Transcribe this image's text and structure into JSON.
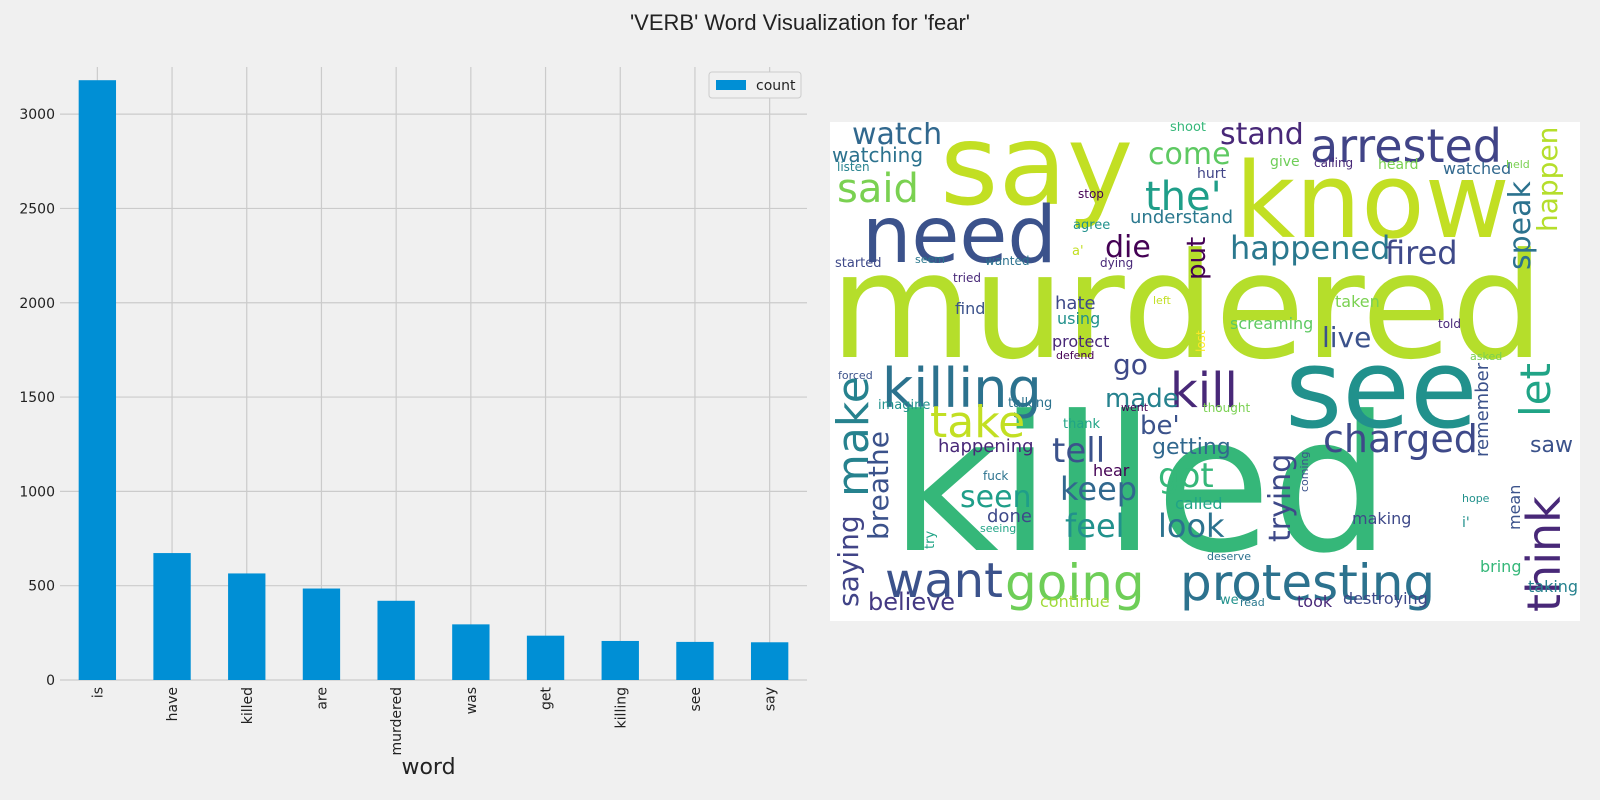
{
  "figure": {
    "title": "'VERB' Word Visualization for 'fear'"
  },
  "chart_data": [
    {
      "type": "bar",
      "xlabel": "word",
      "ylabel": "",
      "categories": [
        "is",
        "have",
        "killed",
        "are",
        "murdered",
        "was",
        "get",
        "killing",
        "see",
        "say"
      ],
      "series": [
        {
          "name": "count",
          "values": [
            3180,
            673,
            565,
            485,
            420,
            295,
            235,
            207,
            202,
            200
          ]
        }
      ],
      "ylim": [
        0,
        3250
      ],
      "yticks": [
        0,
        500,
        1000,
        1500,
        2000,
        2500,
        3000
      ],
      "grid": true,
      "legend_position": "top-right",
      "bar_color": "#008fd5"
    },
    {
      "type": "wordcloud",
      "words": [
        {
          "text": "killed",
          "color": "#35b779"
        },
        {
          "text": "murdered",
          "color": "#b5de2b"
        },
        {
          "text": "say",
          "color": "#c2df23"
        },
        {
          "text": "know",
          "color": "#c2df23"
        },
        {
          "text": "see",
          "color": "#21918c"
        },
        {
          "text": "need",
          "color": "#3b528b"
        },
        {
          "text": "killing",
          "color": "#2c728e"
        },
        {
          "text": "protesting",
          "color": "#2c728e"
        },
        {
          "text": "arrested",
          "color": "#414487"
        },
        {
          "text": "going",
          "color": "#6ece58"
        },
        {
          "text": "want",
          "color": "#3b528b"
        },
        {
          "text": "kill",
          "color": "#482878"
        },
        {
          "text": "think",
          "color": "#482878"
        },
        {
          "text": "make",
          "color": "#26828e"
        },
        {
          "text": "take",
          "color": "#c2df23"
        },
        {
          "text": "charged",
          "color": "#3e4989"
        },
        {
          "text": "the'",
          "color": "#1f9e89"
        },
        {
          "text": "let",
          "color": "#20a486"
        },
        {
          "text": "said",
          "color": "#7ad151"
        },
        {
          "text": "happened",
          "color": "#2a788e"
        },
        {
          "text": "fired",
          "color": "#3e4989"
        },
        {
          "text": "tell",
          "color": "#3b528b"
        },
        {
          "text": "got",
          "color": "#35b779"
        },
        {
          "text": "feel",
          "color": "#21918c"
        },
        {
          "text": "look",
          "color": "#2c728e"
        },
        {
          "text": "keep",
          "color": "#31688e"
        },
        {
          "text": "seen",
          "color": "#1f9e89"
        },
        {
          "text": "watch",
          "color": "#31688e"
        },
        {
          "text": "stand",
          "color": "#482878"
        },
        {
          "text": "come",
          "color": "#5ec962"
        },
        {
          "text": "die",
          "color": "#440154"
        },
        {
          "text": "made",
          "color": "#26828e"
        },
        {
          "text": "go",
          "color": "#3e4989"
        },
        {
          "text": "live",
          "color": "#3b528b"
        },
        {
          "text": "trying",
          "color": "#3e4989"
        },
        {
          "text": "speak",
          "color": "#2c728e"
        },
        {
          "text": "happen",
          "color": "#b5de2b"
        },
        {
          "text": "breathe",
          "color": "#3b528b"
        },
        {
          "text": "saying",
          "color": "#414487"
        },
        {
          "text": "believe",
          "color": "#443983"
        },
        {
          "text": "put",
          "color": "#440154"
        },
        {
          "text": "be'",
          "color": "#3b528b"
        },
        {
          "text": "getting",
          "color": "#31688e"
        },
        {
          "text": "saw",
          "color": "#3b528b"
        },
        {
          "text": "watching",
          "color": "#2c728e"
        },
        {
          "text": "happening",
          "color": "#482878"
        },
        {
          "text": "understand",
          "color": "#2a788e"
        },
        {
          "text": "remember",
          "color": "#3b528b"
        },
        {
          "text": "hate",
          "color": "#3e4989"
        },
        {
          "text": "using",
          "color": "#21918c"
        },
        {
          "text": "protect",
          "color": "#482878"
        },
        {
          "text": "taken",
          "color": "#7ad151"
        },
        {
          "text": "screaming",
          "color": "#5ec962"
        },
        {
          "text": "done",
          "color": "#3e4989"
        },
        {
          "text": "hurt",
          "color": "#414487"
        },
        {
          "text": "find",
          "color": "#3b528b"
        },
        {
          "text": "continue",
          "color": "#a0da39"
        },
        {
          "text": "destroying",
          "color": "#3e4989"
        },
        {
          "text": "took",
          "color": "#482878"
        },
        {
          "text": "taking",
          "color": "#26828e"
        },
        {
          "text": "bring",
          "color": "#35b779"
        },
        {
          "text": "making",
          "color": "#3e4989"
        },
        {
          "text": "called",
          "color": "#20a486"
        },
        {
          "text": "hear",
          "color": "#440154"
        },
        {
          "text": "mean",
          "color": "#3b528b"
        },
        {
          "text": "heard",
          "color": "#7ad151"
        },
        {
          "text": "watched",
          "color": "#31688e"
        },
        {
          "text": "give",
          "color": "#6ece58"
        },
        {
          "text": "calling",
          "color": "#482878"
        },
        {
          "text": "shoot",
          "color": "#35b779"
        },
        {
          "text": "listen",
          "color": "#26828e"
        },
        {
          "text": "stop",
          "color": "#440154"
        },
        {
          "text": "agree",
          "color": "#21918c"
        },
        {
          "text": "started",
          "color": "#3e4989"
        },
        {
          "text": "seem",
          "color": "#2a788e"
        },
        {
          "text": "wanted",
          "color": "#2c728e"
        },
        {
          "text": "dying",
          "color": "#482878"
        },
        {
          "text": "tried",
          "color": "#482878"
        },
        {
          "text": "a'",
          "color": "#c2df23"
        },
        {
          "text": "left",
          "color": "#c2df23"
        },
        {
          "text": "told",
          "color": "#482878"
        },
        {
          "text": "lost",
          "color": "#fde725"
        },
        {
          "text": "defend",
          "color": "#440154"
        },
        {
          "text": "forced",
          "color": "#3b528b"
        },
        {
          "text": "imagine",
          "color": "#21918c"
        },
        {
          "text": "talking",
          "color": "#2c728e"
        },
        {
          "text": "went",
          "color": "#440154"
        },
        {
          "text": "thought",
          "color": "#7ad151"
        },
        {
          "text": "thank",
          "color": "#20a486"
        },
        {
          "text": "asked",
          "color": "#7ad151"
        },
        {
          "text": "fuck",
          "color": "#2c728e"
        },
        {
          "text": "coming",
          "color": "#3b528b"
        },
        {
          "text": "hope",
          "color": "#21918c"
        },
        {
          "text": "i'",
          "color": "#21918c"
        },
        {
          "text": "try",
          "color": "#20a486"
        },
        {
          "text": "seeing",
          "color": "#20a486"
        },
        {
          "text": "deserve",
          "color": "#2c728e"
        },
        {
          "text": "we'",
          "color": "#21918c"
        },
        {
          "text": "read",
          "color": "#2a788e"
        },
        {
          "text": "held",
          "color": "#7ad151"
        }
      ]
    }
  ]
}
